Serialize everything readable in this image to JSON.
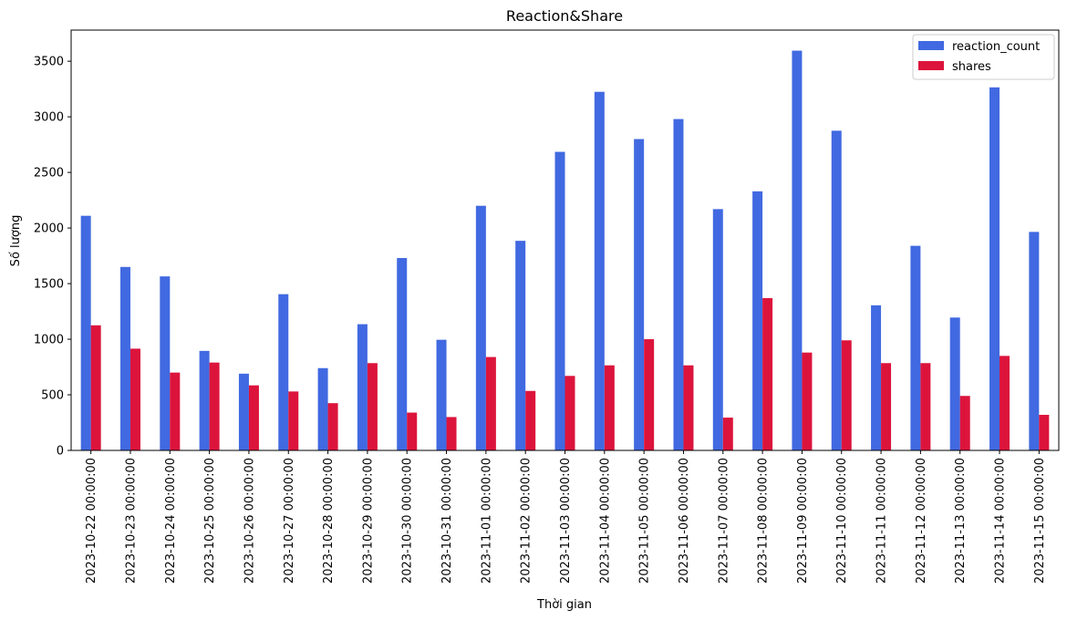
{
  "chart_data": {
    "type": "bar",
    "title": "Reaction&Share",
    "xlabel": "Thời gian",
    "ylabel": "Số lượng",
    "ylim": [
      0,
      3780
    ],
    "yticks": [
      0,
      500,
      1000,
      1500,
      2000,
      2500,
      3000,
      3500
    ],
    "grid": false,
    "legend_position": "top-right",
    "categories": [
      "2023-10-22 00:00:00",
      "2023-10-23 00:00:00",
      "2023-10-24 00:00:00",
      "2023-10-25 00:00:00",
      "2023-10-26 00:00:00",
      "2023-10-27 00:00:00",
      "2023-10-28 00:00:00",
      "2023-10-29 00:00:00",
      "2023-10-30 00:00:00",
      "2023-10-31 00:00:00",
      "2023-11-01 00:00:00",
      "2023-11-02 00:00:00",
      "2023-11-03 00:00:00",
      "2023-11-04 00:00:00",
      "2023-11-05 00:00:00",
      "2023-11-06 00:00:00",
      "2023-11-07 00:00:00",
      "2023-11-08 00:00:00",
      "2023-11-09 00:00:00",
      "2023-11-10 00:00:00",
      "2023-11-11 00:00:00",
      "2023-11-12 00:00:00",
      "2023-11-13 00:00:00",
      "2023-11-14 00:00:00",
      "2023-11-15 00:00:00"
    ],
    "series": [
      {
        "name": "reaction_count",
        "color": "#4169e1",
        "values": [
          2110,
          1650,
          1565,
          895,
          690,
          1405,
          740,
          1135,
          1730,
          995,
          2200,
          1885,
          2685,
          3225,
          2800,
          2980,
          2170,
          2330,
          3595,
          2875,
          1305,
          1840,
          1195,
          3265,
          1965
        ]
      },
      {
        "name": "shares",
        "color": "#dc143c",
        "values": [
          1125,
          915,
          700,
          790,
          585,
          530,
          425,
          785,
          340,
          300,
          840,
          535,
          670,
          765,
          1000,
          765,
          295,
          1370,
          880,
          990,
          785,
          785,
          490,
          850,
          320
        ]
      }
    ]
  }
}
